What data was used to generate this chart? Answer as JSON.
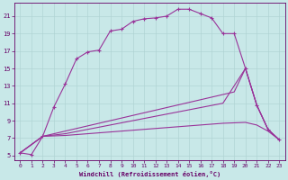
{
  "xlabel": "Windchill (Refroidissement éolien,°C)",
  "bg_color": "#c8e8e8",
  "line_color": "#993399",
  "grid_color": "#b0d4d4",
  "xlim": [
    -0.5,
    23.5
  ],
  "ylim": [
    4.5,
    22.5
  ],
  "xticks": [
    0,
    1,
    2,
    3,
    4,
    5,
    6,
    7,
    8,
    9,
    10,
    11,
    12,
    13,
    14,
    15,
    16,
    17,
    18,
    19,
    20,
    21,
    22,
    23
  ],
  "yticks": [
    5,
    7,
    9,
    11,
    13,
    15,
    17,
    19,
    21
  ],
  "curve1": [
    [
      0,
      5.3
    ],
    [
      1,
      5.1
    ],
    [
      2,
      7.2
    ],
    [
      3,
      10.6
    ],
    [
      4,
      13.2
    ],
    [
      5,
      16.1
    ],
    [
      6,
      16.9
    ],
    [
      7,
      17.1
    ],
    [
      8,
      19.3
    ],
    [
      9,
      19.5
    ],
    [
      10,
      20.4
    ],
    [
      11,
      20.7
    ],
    [
      12,
      20.8
    ],
    [
      13,
      21.0
    ],
    [
      14,
      21.8
    ],
    [
      15,
      21.8
    ],
    [
      16,
      21.3
    ],
    [
      17,
      20.8
    ],
    [
      18,
      19.0
    ],
    [
      19,
      19.0
    ],
    [
      20,
      15.0
    ],
    [
      21,
      10.8
    ],
    [
      22,
      8.0
    ],
    [
      23,
      6.8
    ]
  ],
  "curve2": [
    [
      0,
      5.3
    ],
    [
      2,
      7.2
    ],
    [
      3,
      7.5
    ],
    [
      4,
      7.8
    ],
    [
      5,
      8.1
    ],
    [
      6,
      8.4
    ],
    [
      7,
      8.7
    ],
    [
      8,
      9.0
    ],
    [
      9,
      9.3
    ],
    [
      10,
      9.6
    ],
    [
      11,
      9.9
    ],
    [
      12,
      10.2
    ],
    [
      13,
      10.5
    ],
    [
      14,
      10.8
    ],
    [
      15,
      11.1
    ],
    [
      16,
      11.4
    ],
    [
      17,
      11.7
    ],
    [
      18,
      12.0
    ],
    [
      19,
      12.3
    ],
    [
      20,
      15.0
    ],
    [
      21,
      10.8
    ],
    [
      22,
      8.0
    ],
    [
      23,
      6.8
    ]
  ],
  "curve3": [
    [
      0,
      5.3
    ],
    [
      2,
      7.2
    ],
    [
      4,
      7.5
    ],
    [
      6,
      8.0
    ],
    [
      8,
      8.5
    ],
    [
      10,
      9.0
    ],
    [
      12,
      9.5
    ],
    [
      14,
      10.0
    ],
    [
      16,
      10.5
    ],
    [
      18,
      11.0
    ],
    [
      20,
      15.0
    ],
    [
      21,
      10.8
    ],
    [
      22,
      8.0
    ],
    [
      23,
      6.8
    ]
  ],
  "curve4": [
    [
      0,
      5.3
    ],
    [
      2,
      7.2
    ],
    [
      4,
      7.3
    ],
    [
      6,
      7.5
    ],
    [
      8,
      7.7
    ],
    [
      10,
      7.9
    ],
    [
      12,
      8.1
    ],
    [
      14,
      8.3
    ],
    [
      16,
      8.5
    ],
    [
      18,
      8.7
    ],
    [
      20,
      8.8
    ],
    [
      21,
      8.5
    ],
    [
      22,
      7.8
    ],
    [
      23,
      6.8
    ]
  ]
}
